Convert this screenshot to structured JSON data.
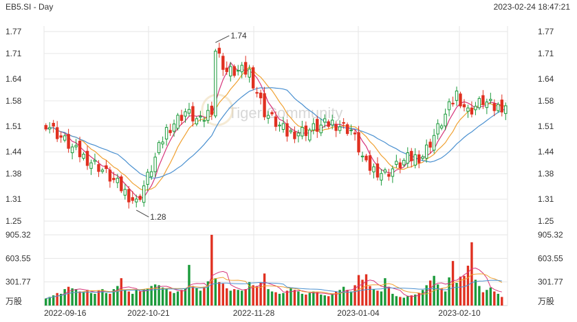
{
  "header": {
    "symbol": "EB5.SI - Day",
    "timestamp": "2023-02-24 18:47:21"
  },
  "watermark": "Tiger Community",
  "colors": {
    "up": "#1a9a3a",
    "down": "#e03020",
    "ma_short": "#d6337a",
    "ma_mid": "#f0a030",
    "ma_long": "#4a90d0",
    "grid": "#e6e6e6"
  },
  "chart_data": {
    "type": "candlestick",
    "price_axis": {
      "ticks": [
        "1.77",
        "1.71",
        "1.64",
        "1.58",
        "1.51",
        "1.44",
        "1.38",
        "1.31",
        "1.25"
      ],
      "range": [
        1.25,
        1.77
      ]
    },
    "volume_axis": {
      "ticks": [
        "905.32",
        "603.55",
        "301.77"
      ],
      "unit": "万股",
      "range": [
        0,
        905.32
      ]
    },
    "x_labels": [
      "2022-09-16",
      "2022-10-21",
      "2022-11-28",
      "2023-01-04",
      "2023-02-10"
    ],
    "annotations": [
      {
        "label": "1.74",
        "price": 1.74
      },
      {
        "label": "1.28",
        "price": 1.28
      }
    ],
    "series": [
      {
        "name": "Daily Candles",
        "anchors": [
          [
            0,
            1.52
          ],
          [
            8,
            1.44
          ],
          [
            14,
            1.4
          ],
          [
            20,
            1.34
          ],
          [
            24,
            1.3
          ],
          [
            27,
            1.37
          ],
          [
            32,
            1.5
          ],
          [
            37,
            1.55
          ],
          [
            41,
            1.52
          ],
          [
            44,
            1.56
          ],
          [
            45,
            1.72
          ],
          [
            48,
            1.66
          ],
          [
            54,
            1.66
          ],
          [
            58,
            1.55
          ],
          [
            64,
            1.49
          ],
          [
            70,
            1.5
          ],
          [
            76,
            1.52
          ],
          [
            81,
            1.5
          ],
          [
            85,
            1.4
          ],
          [
            90,
            1.38
          ],
          [
            96,
            1.42
          ],
          [
            100,
            1.43
          ],
          [
            106,
            1.54
          ],
          [
            109,
            1.6
          ],
          [
            112,
            1.55
          ],
          [
            116,
            1.58
          ],
          [
            119,
            1.56
          ],
          [
            122,
            1.57
          ]
        ]
      },
      {
        "name": "Volume",
        "values": [
          90,
          110,
          130,
          160,
          150,
          210,
          240,
          220,
          210,
          180,
          170,
          200,
          160,
          150,
          190,
          210,
          160,
          150,
          210,
          250,
          350,
          200,
          180,
          150,
          200,
          180,
          210,
          220,
          250,
          270,
          260,
          230,
          220,
          180,
          160,
          180,
          200,
          220,
          520,
          250,
          220,
          190,
          240,
          310,
          940,
          350,
          300,
          280,
          220,
          190,
          210,
          200,
          190,
          210,
          300,
          260,
          250,
          290,
          410,
          210,
          180,
          170,
          150,
          160,
          190,
          220,
          200,
          180,
          150,
          140,
          160,
          180,
          170,
          140,
          130,
          120,
          150,
          180,
          200,
          240,
          200,
          180,
          260,
          390,
          330,
          400,
          250,
          210,
          190,
          180,
          350,
          240,
          150,
          120,
          110,
          100,
          120,
          130,
          140,
          160,
          200,
          260,
          320,
          380,
          270,
          220,
          180,
          360,
          570,
          290,
          370,
          380,
          510,
          810,
          330,
          250,
          170,
          200,
          230,
          180,
          150,
          110
        ]
      }
    ]
  }
}
